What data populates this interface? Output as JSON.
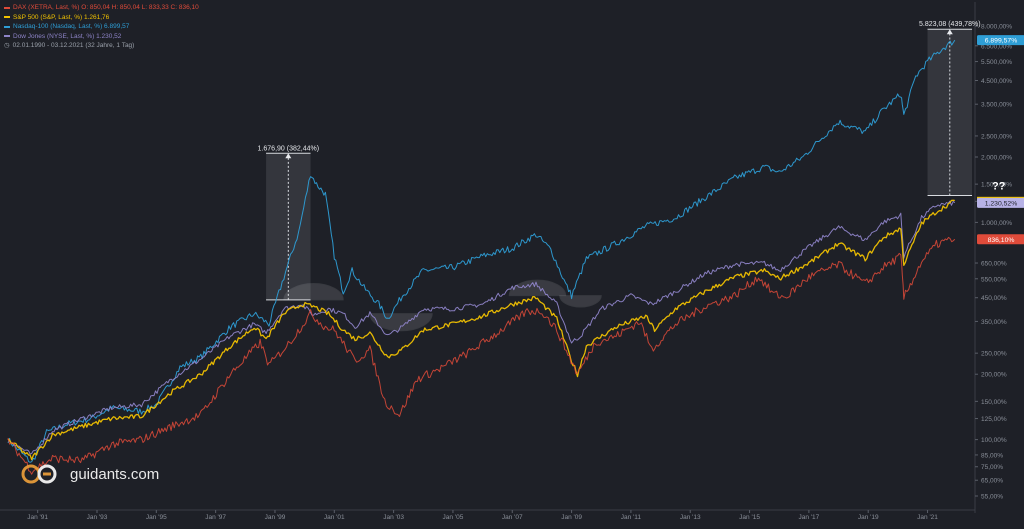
{
  "legend": {
    "items": [
      {
        "text": "DAX (XETRA, Last, %)  O: 850,04  H: 850,04  L: 833,33  C: 836,10",
        "color": "#e04b3a"
      },
      {
        "text": "S&P 500 (S&P, Last, %)  1.261,76",
        "color": "#f2c200"
      },
      {
        "text": "Nasdaq-100 (Nasdaq, Last, %)  6.899,57",
        "color": "#2e9ed6"
      },
      {
        "text": "Dow Jones (NYSE, Last, %)  1.230,52",
        "color": "#8e84c8"
      }
    ],
    "range": "02.01.1990 - 03.12.2021   (32 Jahre, 1 Tag)"
  },
  "watermark": "guidants.com",
  "annotations": {
    "box1_label": "1.676,90 (382,44%)",
    "box2_label": "5.823,08 (439,78%)",
    "question": "??"
  },
  "badges": [
    {
      "text": "6.899,57%",
      "color": "#2e9ed6",
      "value": 6899.57
    },
    {
      "text": "1.230,52%",
      "color": "#b7b2e6",
      "value": 1230.52,
      "accent": "#f2c200"
    },
    {
      "text": "836,10%",
      "color": "#e04b3a",
      "value": 836.1
    }
  ],
  "chart_data": {
    "type": "line",
    "y_scale": "log",
    "x_tick_labels": [
      "Jan '91",
      "Jan '93",
      "Jan '95",
      "Jan '97",
      "Jan '99",
      "Jan '01",
      "Jan '03",
      "Jan '05",
      "Jan '07",
      "Jan '09",
      "Jan '11",
      "Jan '13",
      "Jan '15",
      "Jan '17",
      "Jan '19",
      "Jan '21"
    ],
    "x_tick_years": [
      1991,
      1993,
      1995,
      1997,
      1999,
      2001,
      2003,
      2005,
      2007,
      2009,
      2011,
      2013,
      2015,
      2017,
      2019,
      2021
    ],
    "xlim": [
      1990.0,
      2022.6
    ],
    "y_ticks": [
      55,
      65,
      75,
      85,
      100,
      125,
      150,
      200,
      250,
      350,
      450,
      550,
      650,
      1000,
      1250,
      1500,
      2000,
      2500,
      3500,
      4500,
      5500,
      6500,
      8000
    ],
    "y_tick_labels": [
      "55,00%",
      "65,00%",
      "75,00%",
      "85,00%",
      "100,00%",
      "125,00%",
      "150,00%",
      "200,00%",
      "250,00%",
      "350,00%",
      "450,00%",
      "550,00%",
      "650,00%",
      "1.000,00%",
      "1.250,00%",
      "1.500,00%",
      "2.000,00%",
      "2.500,00%",
      "3.500,00%",
      "4.500,00%",
      "5.500,00%",
      "6.500,00%",
      "8.000,00%"
    ],
    "ylim": [
      50,
      9500
    ],
    "grid": false,
    "legend_position": "top-left",
    "series": [
      {
        "name": "Nasdaq-100 (Nasdaq, Last, %)",
        "color": "#2e9ed6",
        "points": [
          [
            1990.0,
            100
          ],
          [
            1990.8,
            78
          ],
          [
            1991.3,
            108
          ],
          [
            1992.0,
            118
          ],
          [
            1992.8,
            125
          ],
          [
            1993.5,
            140
          ],
          [
            1994.5,
            135
          ],
          [
            1995.0,
            145
          ],
          [
            1995.8,
            215
          ],
          [
            1996.5,
            240
          ],
          [
            1997.5,
            330
          ],
          [
            1998.3,
            380
          ],
          [
            1998.8,
            340
          ],
          [
            1999.3,
            560
          ],
          [
            1999.8,
            900
          ],
          [
            2000.2,
            1677
          ],
          [
            2000.4,
            1500
          ],
          [
            2000.7,
            1350
          ],
          [
            2001.0,
            700
          ],
          [
            2001.3,
            480
          ],
          [
            2001.6,
            600
          ],
          [
            2002.0,
            500
          ],
          [
            2002.5,
            420
          ],
          [
            2002.8,
            360
          ],
          [
            2003.3,
            460
          ],
          [
            2004.0,
            600
          ],
          [
            2005.0,
            620
          ],
          [
            2006.0,
            700
          ],
          [
            2007.0,
            760
          ],
          [
            2007.8,
            880
          ],
          [
            2008.3,
            750
          ],
          [
            2008.8,
            520
          ],
          [
            2009.0,
            460
          ],
          [
            2009.5,
            680
          ],
          [
            2010.5,
            800
          ],
          [
            2011.5,
            960
          ],
          [
            2012.5,
            1050
          ],
          [
            2013.5,
            1300
          ],
          [
            2014.5,
            1600
          ],
          [
            2015.5,
            1800
          ],
          [
            2016.0,
            1700
          ],
          [
            2016.8,
            2000
          ],
          [
            2017.5,
            2500
          ],
          [
            2018.0,
            2900
          ],
          [
            2018.9,
            2600
          ],
          [
            2019.5,
            3300
          ],
          [
            2020.1,
            3900
          ],
          [
            2020.2,
            3100
          ],
          [
            2020.6,
            4700
          ],
          [
            2021.0,
            5500
          ],
          [
            2021.5,
            6300
          ],
          [
            2021.92,
            6899.57
          ]
        ]
      },
      {
        "name": "Dow Jones (NYSE, Last, %)",
        "color": "#8e84c8",
        "points": [
          [
            1990.0,
            100
          ],
          [
            1990.8,
            85
          ],
          [
            1991.5,
            110
          ],
          [
            1992.5,
            125
          ],
          [
            1993.5,
            140
          ],
          [
            1994.5,
            145
          ],
          [
            1995.5,
            190
          ],
          [
            1996.5,
            235
          ],
          [
            1997.5,
            300
          ],
          [
            1998.3,
            340
          ],
          [
            1998.7,
            310
          ],
          [
            1999.3,
            400
          ],
          [
            1999.9,
            420
          ],
          [
            2000.3,
            375
          ],
          [
            2000.8,
            400
          ],
          [
            2001.3,
            380
          ],
          [
            2001.7,
            330
          ],
          [
            2002.2,
            380
          ],
          [
            2002.8,
            300
          ],
          [
            2003.3,
            330
          ],
          [
            2004.0,
            400
          ],
          [
            2005.0,
            400
          ],
          [
            2006.0,
            420
          ],
          [
            2007.0,
            500
          ],
          [
            2007.8,
            520
          ],
          [
            2008.5,
            420
          ],
          [
            2009.0,
            280
          ],
          [
            2009.3,
            300
          ],
          [
            2010.0,
            400
          ],
          [
            2011.0,
            460
          ],
          [
            2011.7,
            420
          ],
          [
            2012.5,
            480
          ],
          [
            2013.5,
            580
          ],
          [
            2014.5,
            640
          ],
          [
            2015.5,
            650
          ],
          [
            2016.0,
            600
          ],
          [
            2017.0,
            770
          ],
          [
            2018.0,
            950
          ],
          [
            2018.9,
            830
          ],
          [
            2019.5,
            1000
          ],
          [
            2020.1,
            1080
          ],
          [
            2020.2,
            700
          ],
          [
            2020.8,
            1050
          ],
          [
            2021.3,
            1200
          ],
          [
            2021.92,
            1230.52
          ]
        ]
      },
      {
        "name": "S&P 500 (S&P, Last, %)",
        "color": "#f2c200",
        "points": [
          [
            1990.0,
            100
          ],
          [
            1990.8,
            82
          ],
          [
            1991.5,
            105
          ],
          [
            1992.5,
            115
          ],
          [
            1993.5,
            125
          ],
          [
            1994.5,
            128
          ],
          [
            1995.5,
            165
          ],
          [
            1996.5,
            200
          ],
          [
            1997.5,
            270
          ],
          [
            1998.3,
            330
          ],
          [
            1998.7,
            290
          ],
          [
            1999.3,
            380
          ],
          [
            1999.9,
            420
          ],
          [
            2000.3,
            410
          ],
          [
            2000.8,
            380
          ],
          [
            2001.3,
            320
          ],
          [
            2001.7,
            290
          ],
          [
            2002.2,
            310
          ],
          [
            2002.8,
            240
          ],
          [
            2003.3,
            260
          ],
          [
            2004.0,
            320
          ],
          [
            2005.0,
            340
          ],
          [
            2006.0,
            370
          ],
          [
            2007.0,
            420
          ],
          [
            2007.8,
            450
          ],
          [
            2008.5,
            360
          ],
          [
            2009.0,
            230
          ],
          [
            2009.2,
            200
          ],
          [
            2009.5,
            270
          ],
          [
            2010.5,
            330
          ],
          [
            2011.5,
            370
          ],
          [
            2011.8,
            320
          ],
          [
            2012.5,
            400
          ],
          [
            2013.5,
            480
          ],
          [
            2014.5,
            560
          ],
          [
            2015.5,
            600
          ],
          [
            2016.0,
            550
          ],
          [
            2017.0,
            650
          ],
          [
            2018.0,
            800
          ],
          [
            2018.9,
            680
          ],
          [
            2019.5,
            850
          ],
          [
            2020.1,
            940
          ],
          [
            2020.2,
            640
          ],
          [
            2020.8,
            990
          ],
          [
            2021.3,
            1120
          ],
          [
            2021.92,
            1261.76
          ]
        ]
      },
      {
        "name": "DAX (XETRA, Last, %)",
        "color": "#e04b3a",
        "points": [
          [
            1990.0,
            100
          ],
          [
            1990.8,
            72
          ],
          [
            1991.5,
            82
          ],
          [
            1992.5,
            80
          ],
          [
            1993.5,
            95
          ],
          [
            1994.5,
            100
          ],
          [
            1995.5,
            115
          ],
          [
            1996.5,
            130
          ],
          [
            1997.5,
            200
          ],
          [
            1998.5,
            280
          ],
          [
            1998.8,
            220
          ],
          [
            1999.5,
            280
          ],
          [
            2000.2,
            380
          ],
          [
            2000.7,
            330
          ],
          [
            2001.0,
            320
          ],
          [
            2001.7,
            230
          ],
          [
            2002.2,
            260
          ],
          [
            2002.7,
            150
          ],
          [
            2003.2,
            130
          ],
          [
            2003.8,
            190
          ],
          [
            2004.5,
            210
          ],
          [
            2005.5,
            250
          ],
          [
            2006.5,
            310
          ],
          [
            2007.5,
            390
          ],
          [
            2008.0,
            390
          ],
          [
            2008.5,
            320
          ],
          [
            2009.2,
            200
          ],
          [
            2009.8,
            280
          ],
          [
            2010.5,
            300
          ],
          [
            2011.3,
            350
          ],
          [
            2011.7,
            260
          ],
          [
            2012.5,
            340
          ],
          [
            2013.5,
            410
          ],
          [
            2014.5,
            460
          ],
          [
            2015.3,
            560
          ],
          [
            2015.8,
            470
          ],
          [
            2016.2,
            450
          ],
          [
            2017.0,
            560
          ],
          [
            2018.0,
            640
          ],
          [
            2018.9,
            520
          ],
          [
            2019.5,
            620
          ],
          [
            2020.1,
            700
          ],
          [
            2020.2,
            450
          ],
          [
            2020.8,
            660
          ],
          [
            2021.3,
            790
          ],
          [
            2021.6,
            820
          ],
          [
            2021.92,
            836.1
          ]
        ]
      }
    ]
  }
}
